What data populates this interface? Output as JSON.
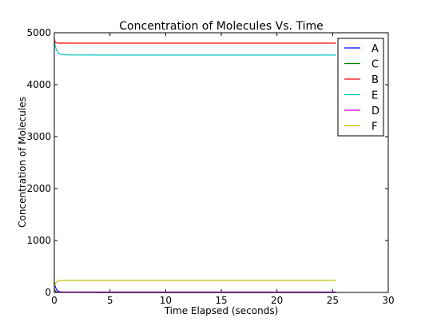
{
  "chart_data": {
    "type": "line",
    "title": "Concentration of Molecules Vs. Time",
    "xlabel": "Time Elapsed (seconds)",
    "ylabel": "Concentration of Molecules",
    "xlim": [
      0,
      30
    ],
    "ylim": [
      0,
      5000
    ],
    "xticks": [
      "0",
      "5",
      "10",
      "15",
      "20",
      "25",
      "30"
    ],
    "yticks": [
      "0",
      "1000",
      "2000",
      "3000",
      "4000",
      "5000"
    ],
    "grid": false,
    "legend_position": "top-right",
    "series": [
      {
        "name": "A",
        "color": "#0000ff",
        "x": [
          0,
          0.05,
          0.1,
          0.2,
          0.3,
          0.5,
          0.8,
          1.2,
          2,
          5,
          10,
          15,
          20,
          25.3
        ],
        "y": [
          200,
          140,
          100,
          55,
          30,
          12,
          5,
          2,
          1,
          0,
          0,
          0,
          0,
          0
        ]
      },
      {
        "name": "C",
        "color": "#008000",
        "x": [
          0,
          0.05,
          0.1,
          0.2,
          0.3,
          0.5,
          0.8,
          1.2,
          2,
          5,
          10,
          15,
          20,
          25.3
        ],
        "y": [
          60,
          40,
          25,
          12,
          6,
          3,
          2,
          1,
          1,
          1,
          1,
          1,
          1,
          1
        ]
      },
      {
        "name": "B",
        "color": "#ff0000",
        "x": [
          0,
          0.05,
          0.1,
          0.2,
          0.4,
          0.7,
          1,
          2,
          5,
          10,
          15,
          20,
          25.3
        ],
        "y": [
          4890,
          4840,
          4815,
          4805,
          4800,
          4800,
          4800,
          4800,
          4800,
          4800,
          4800,
          4800,
          4800
        ]
      },
      {
        "name": "E",
        "color": "#00bfbf",
        "x": [
          0,
          0.05,
          0.1,
          0.2,
          0.3,
          0.5,
          0.8,
          1.2,
          2,
          5,
          10,
          15,
          20,
          25.3
        ],
        "y": [
          4850,
          4780,
          4730,
          4665,
          4625,
          4590,
          4578,
          4573,
          4572,
          4571,
          4571,
          4571,
          4571,
          4571
        ]
      },
      {
        "name": "D",
        "color": "#bf00bf",
        "x": [
          0,
          0.05,
          0.1,
          0.2,
          0.3,
          0.5,
          0.8,
          1.2,
          2,
          5,
          10,
          15,
          20,
          25.3
        ],
        "y": [
          0,
          4,
          6,
          8,
          9,
          9,
          9,
          9,
          9,
          9,
          9,
          9,
          9,
          9
        ]
      },
      {
        "name": "F",
        "color": "#bfbf00",
        "x": [
          0,
          0.05,
          0.1,
          0.2,
          0.3,
          0.5,
          0.8,
          1.2,
          2,
          5,
          10,
          15,
          20,
          25.3
        ],
        "y": [
          100,
          140,
          170,
          200,
          215,
          228,
          232,
          233,
          233,
          233,
          233,
          233,
          233,
          233
        ]
      }
    ]
  }
}
